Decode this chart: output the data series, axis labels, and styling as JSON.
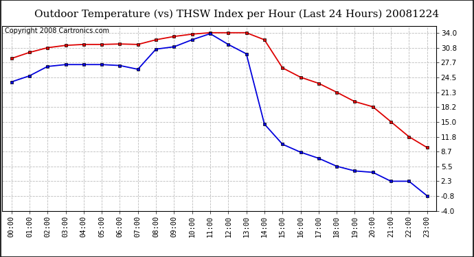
{
  "title": "Outdoor Temperature (vs) THSW Index per Hour (Last 24 Hours) 20081224",
  "copyright": "Copyright 2008 Cartronics.com",
  "hours": [
    "00:00",
    "01:00",
    "02:00",
    "03:00",
    "04:00",
    "05:00",
    "06:00",
    "07:00",
    "08:00",
    "09:00",
    "10:00",
    "11:00",
    "12:00",
    "13:00",
    "14:00",
    "15:00",
    "16:00",
    "17:00",
    "18:00",
    "19:00",
    "20:00",
    "21:00",
    "22:00",
    "23:00"
  ],
  "temp_red": [
    28.5,
    29.8,
    30.8,
    31.3,
    31.5,
    31.5,
    31.6,
    31.5,
    32.5,
    33.2,
    33.7,
    34.0,
    34.0,
    34.0,
    32.5,
    26.5,
    24.5,
    23.2,
    21.3,
    19.3,
    18.2,
    15.0,
    11.8,
    9.5
  ],
  "thsw_blue": [
    23.5,
    24.8,
    26.8,
    27.2,
    27.2,
    27.2,
    27.0,
    26.2,
    30.5,
    31.0,
    32.5,
    33.8,
    31.5,
    29.5,
    14.5,
    10.2,
    8.5,
    7.2,
    5.5,
    4.5,
    4.2,
    2.3,
    2.3,
    -0.8
  ],
  "y_ticks": [
    34.0,
    30.8,
    27.7,
    24.5,
    21.3,
    18.2,
    15.0,
    11.8,
    8.7,
    5.5,
    2.3,
    -0.8,
    -4.0
  ],
  "ylim": [
    -4.0,
    35.5
  ],
  "bg_color": "#ffffff",
  "grid_color": "#bbbbbb",
  "red_color": "#dd0000",
  "blue_color": "#0000dd",
  "title_fontsize": 11,
  "copyright_fontsize": 7,
  "tick_fontsize": 7.5
}
